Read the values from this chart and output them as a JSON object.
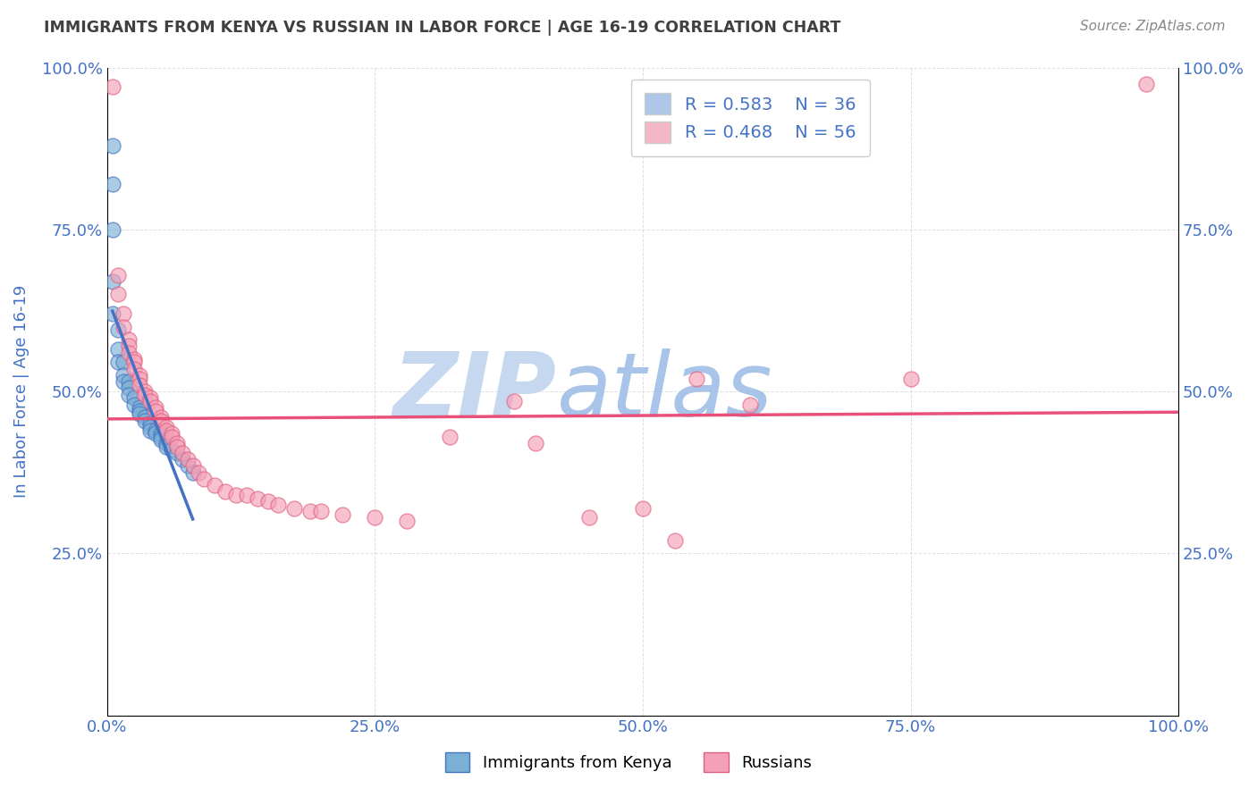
{
  "title": "IMMIGRANTS FROM KENYA VS RUSSIAN IN LABOR FORCE | AGE 16-19 CORRELATION CHART",
  "source_text": "Source: ZipAtlas.com",
  "ylabel": "In Labor Force | Age 16-19",
  "xlim": [
    0.0,
    1.0
  ],
  "ylim": [
    0.0,
    1.0
  ],
  "xtick_labels": [
    "0.0%",
    "25.0%",
    "50.0%",
    "75.0%",
    "100.0%"
  ],
  "xtick_positions": [
    0.0,
    0.25,
    0.5,
    0.75,
    1.0
  ],
  "ytick_labels": [
    "25.0%",
    "50.0%",
    "75.0%",
    "100.0%"
  ],
  "ytick_positions": [
    0.25,
    0.5,
    0.75,
    1.0
  ],
  "legend_entries": [
    {
      "label": "R = 0.583    N = 36",
      "color": "#aec6e8",
      "line_color": "#4472c4"
    },
    {
      "label": "R = 0.468    N = 56",
      "color": "#f4b8c8",
      "line_color": "#e8507a"
    }
  ],
  "watermark_zip": "ZIP",
  "watermark_atlas": "atlas",
  "watermark_color_zip": "#c5d8f0",
  "watermark_color_atlas": "#a8c4e8",
  "kenya_points": [
    [
      0.005,
      0.88
    ],
    [
      0.005,
      0.82
    ],
    [
      0.005,
      0.75
    ],
    [
      0.005,
      0.67
    ],
    [
      0.005,
      0.62
    ],
    [
      0.01,
      0.595
    ],
    [
      0.01,
      0.565
    ],
    [
      0.01,
      0.545
    ],
    [
      0.015,
      0.545
    ],
    [
      0.015,
      0.525
    ],
    [
      0.015,
      0.515
    ],
    [
      0.02,
      0.515
    ],
    [
      0.02,
      0.505
    ],
    [
      0.02,
      0.495
    ],
    [
      0.025,
      0.49
    ],
    [
      0.025,
      0.48
    ],
    [
      0.03,
      0.475
    ],
    [
      0.03,
      0.47
    ],
    [
      0.03,
      0.465
    ],
    [
      0.035,
      0.46
    ],
    [
      0.035,
      0.455
    ],
    [
      0.04,
      0.45
    ],
    [
      0.04,
      0.445
    ],
    [
      0.04,
      0.44
    ],
    [
      0.045,
      0.44
    ],
    [
      0.045,
      0.435
    ],
    [
      0.05,
      0.435
    ],
    [
      0.05,
      0.43
    ],
    [
      0.05,
      0.425
    ],
    [
      0.055,
      0.42
    ],
    [
      0.055,
      0.415
    ],
    [
      0.06,
      0.41
    ],
    [
      0.065,
      0.405
    ],
    [
      0.07,
      0.395
    ],
    [
      0.075,
      0.385
    ],
    [
      0.08,
      0.375
    ]
  ],
  "russian_points": [
    [
      0.005,
      0.97
    ],
    [
      0.01,
      0.68
    ],
    [
      0.01,
      0.65
    ],
    [
      0.015,
      0.62
    ],
    [
      0.015,
      0.6
    ],
    [
      0.02,
      0.58
    ],
    [
      0.02,
      0.57
    ],
    [
      0.02,
      0.56
    ],
    [
      0.025,
      0.55
    ],
    [
      0.025,
      0.545
    ],
    [
      0.025,
      0.535
    ],
    [
      0.03,
      0.525
    ],
    [
      0.03,
      0.52
    ],
    [
      0.03,
      0.51
    ],
    [
      0.035,
      0.5
    ],
    [
      0.035,
      0.495
    ],
    [
      0.04,
      0.49
    ],
    [
      0.04,
      0.485
    ],
    [
      0.045,
      0.475
    ],
    [
      0.045,
      0.47
    ],
    [
      0.05,
      0.46
    ],
    [
      0.05,
      0.455
    ],
    [
      0.055,
      0.445
    ],
    [
      0.055,
      0.44
    ],
    [
      0.06,
      0.435
    ],
    [
      0.06,
      0.43
    ],
    [
      0.065,
      0.42
    ],
    [
      0.065,
      0.415
    ],
    [
      0.07,
      0.405
    ],
    [
      0.075,
      0.395
    ],
    [
      0.08,
      0.385
    ],
    [
      0.085,
      0.375
    ],
    [
      0.09,
      0.365
    ],
    [
      0.1,
      0.355
    ],
    [
      0.11,
      0.345
    ],
    [
      0.12,
      0.34
    ],
    [
      0.13,
      0.34
    ],
    [
      0.14,
      0.335
    ],
    [
      0.15,
      0.33
    ],
    [
      0.16,
      0.325
    ],
    [
      0.175,
      0.32
    ],
    [
      0.19,
      0.315
    ],
    [
      0.2,
      0.315
    ],
    [
      0.22,
      0.31
    ],
    [
      0.25,
      0.305
    ],
    [
      0.28,
      0.3
    ],
    [
      0.32,
      0.43
    ],
    [
      0.38,
      0.485
    ],
    [
      0.4,
      0.42
    ],
    [
      0.45,
      0.305
    ],
    [
      0.5,
      0.32
    ],
    [
      0.53,
      0.27
    ],
    [
      0.55,
      0.52
    ],
    [
      0.6,
      0.48
    ],
    [
      0.75,
      0.52
    ],
    [
      0.97,
      0.975
    ]
  ],
  "kenya_color": "#7bafd4",
  "kenya_edge": "#4472c4",
  "russian_color": "#f4a0b8",
  "russian_edge": "#e06080",
  "kenya_line_color": "#4472c4",
  "russian_line_color": "#e8507a",
  "background_color": "#ffffff",
  "grid_color": "#cccccc",
  "title_color": "#404040",
  "tick_color": "#4472c4"
}
